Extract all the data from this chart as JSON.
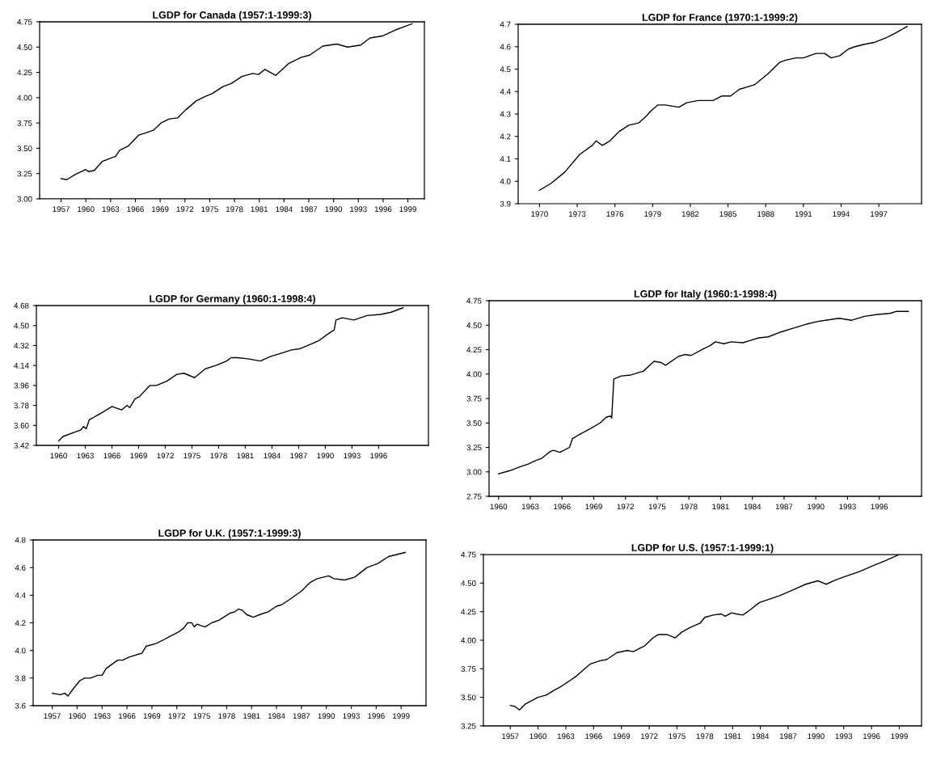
{
  "chart_data": [
    {
      "type": "line",
      "title": "LGDP for Canada (1957:1-1999:3)",
      "xlim": [
        1954.4,
        2001.0
      ],
      "xticks": [
        1957,
        1960,
        1963,
        1966,
        1969,
        1972,
        1975,
        1978,
        1981,
        1984,
        1987,
        1990,
        1993,
        1996,
        1999
      ],
      "ylim": [
        3.0,
        4.75
      ],
      "yticks": [
        {
          "value": 3.0,
          "label": "3.00"
        },
        {
          "value": 3.25,
          "label": "3.25"
        },
        {
          "value": 3.5,
          "label": "3.50"
        },
        {
          "value": 3.75,
          "label": "3.75"
        },
        {
          "value": 4.0,
          "label": "4.00"
        },
        {
          "value": 4.25,
          "label": "4.25"
        },
        {
          "value": 4.5,
          "label": "4.50"
        },
        {
          "value": 4.75,
          "label": "4.75"
        }
      ],
      "grid": false,
      "marker": "none",
      "line_style": "solid",
      "series": [
        {
          "color": "#000000",
          "x": [
            1957,
            1957.7,
            1958.7,
            1960.0,
            1960.3,
            1961.0,
            1962.0,
            1963.6,
            1964.1,
            1965.1,
            1966.4,
            1967.2,
            1968.2,
            1969.1,
            1970.1,
            1971.1,
            1972.1,
            1973.4,
            1974.4,
            1975.3,
            1976.6,
            1977.6,
            1978.9,
            1980.2,
            1980.9,
            1981.7,
            1983.0,
            1983.8,
            1984.6,
            1986.1,
            1987.1,
            1988.7,
            1990.4,
            1991.7,
            1993.3,
            1994.4,
            1995.9,
            1997.5,
            1999.5
          ],
          "values": [
            3.2,
            3.19,
            3.24,
            3.29,
            3.27,
            3.28,
            3.37,
            3.42,
            3.48,
            3.52,
            3.63,
            3.65,
            3.68,
            3.75,
            3.79,
            3.8,
            3.88,
            3.97,
            4.01,
            4.04,
            4.11,
            4.14,
            4.21,
            4.24,
            4.23,
            4.28,
            4.22,
            4.28,
            4.34,
            4.4,
            4.42,
            4.51,
            4.53,
            4.5,
            4.52,
            4.59,
            4.61,
            4.67,
            4.73
          ]
        }
      ]
    },
    {
      "type": "line",
      "title": "LGDP for France (1970:1-1999:2)",
      "xlim": [
        1968.3,
        2000.4
      ],
      "xticks": [
        1970,
        1973,
        1976,
        1979,
        1982,
        1985,
        1988,
        1991,
        1994,
        1997
      ],
      "ylim": [
        3.9,
        4.7
      ],
      "yticks": [
        3.9,
        {
          "value": 4.0,
          "label": "4.0"
        },
        4.1,
        4.2,
        4.3,
        4.4,
        4.5,
        4.6,
        4.7
      ],
      "grid": false,
      "marker": "none",
      "line_style": "solid",
      "series": [
        {
          "color": "#000000",
          "x": [
            1970,
            1970.9,
            1972.0,
            1973.2,
            1974.2,
            1974.5,
            1975.0,
            1975.6,
            1976.3,
            1977.1,
            1977.9,
            1978.5,
            1978.8,
            1979.4,
            1980.0,
            1981.1,
            1981.7,
            1982.6,
            1983.8,
            1984.5,
            1985.2,
            1985.9,
            1987.1,
            1988.2,
            1989.1,
            1989.6,
            1990.4,
            1991.0,
            1992.0,
            1992.7,
            1993.2,
            1993.9,
            1994.6,
            1995.1,
            1995.8,
            1996.7,
            1997.6,
            1998.3,
            1999.25
          ],
          "values": [
            3.96,
            3.99,
            4.04,
            4.12,
            4.16,
            4.18,
            4.16,
            4.18,
            4.22,
            4.25,
            4.26,
            4.29,
            4.31,
            4.34,
            4.34,
            4.33,
            4.35,
            4.36,
            4.36,
            4.38,
            4.38,
            4.41,
            4.43,
            4.48,
            4.53,
            4.54,
            4.55,
            4.55,
            4.57,
            4.57,
            4.55,
            4.56,
            4.59,
            4.6,
            4.61,
            4.62,
            4.64,
            4.66,
            4.69
          ]
        }
      ]
    },
    {
      "type": "line",
      "title": "LGDP for Germany (1960:1-1998:4)",
      "xlim": [
        1957.5,
        2001.6
      ],
      "xticks": [
        1960,
        1963,
        1966,
        1969,
        1972,
        1975,
        1978,
        1981,
        1984,
        1987,
        1990,
        1993,
        1996
      ],
      "ylim": [
        3.42,
        4.68
      ],
      "yticks": [
        {
          "value": 3.42,
          "label": "3.42"
        },
        {
          "value": 3.6,
          "label": "3.60"
        },
        {
          "value": 3.78,
          "label": "3.78"
        },
        {
          "value": 3.96,
          "label": "3.96"
        },
        {
          "value": 4.14,
          "label": "4.14"
        },
        {
          "value": 4.32,
          "label": "4.32"
        },
        {
          "value": 4.5,
          "label": "4.50"
        },
        {
          "value": 4.68,
          "label": "4.68"
        }
      ],
      "grid": false,
      "marker": "none",
      "line_style": "solid",
      "series": [
        {
          "color": "#000000",
          "x": [
            1960,
            1960.5,
            1961.5,
            1962.5,
            1962.8,
            1963.1,
            1963.45,
            1964.97,
            1966.0,
            1967.1,
            1967.7,
            1968.0,
            1968.6,
            1969.1,
            1969.8,
            1970.3,
            1971.0,
            1972.2,
            1973.3,
            1974.1,
            1975.3,
            1976.5,
            1977.7,
            1978.9,
            1979.4,
            1980.1,
            1981.3,
            1982.7,
            1983.8,
            1985.0,
            1986.2,
            1987.1,
            1987.7,
            1989.2,
            1990.4,
            1991.0,
            1991.2,
            1991.9,
            1993.2,
            1994.7,
            1996.2,
            1997.4,
            1998.75
          ],
          "values": [
            3.46,
            3.5,
            3.53,
            3.56,
            3.59,
            3.57,
            3.65,
            3.72,
            3.77,
            3.74,
            3.78,
            3.76,
            3.84,
            3.86,
            3.92,
            3.96,
            3.96,
            4.0,
            4.06,
            4.07,
            4.03,
            4.11,
            4.14,
            4.18,
            4.21,
            4.21,
            4.2,
            4.18,
            4.22,
            4.25,
            4.28,
            4.29,
            4.31,
            4.36,
            4.43,
            4.46,
            4.55,
            4.57,
            4.55,
            4.59,
            4.6,
            4.62,
            4.66
          ]
        }
      ]
    },
    {
      "type": "line",
      "title": "LGDP for Italy (1960:1-1998:4)",
      "xlim": [
        1959.1,
        2000.0
      ],
      "xticks": [
        1960,
        1963,
        1966,
        1969,
        1972,
        1975,
        1978,
        1981,
        1984,
        1987,
        1990,
        1993,
        1996
      ],
      "ylim": [
        2.75,
        4.75
      ],
      "yticks": [
        {
          "value": 2.75,
          "label": "2.75"
        },
        {
          "value": 3.0,
          "label": "3.00"
        },
        {
          "value": 3.25,
          "label": "3.25"
        },
        {
          "value": 3.5,
          "label": "3.50"
        },
        {
          "value": 3.75,
          "label": "3.75"
        },
        {
          "value": 4.0,
          "label": "4.00"
        },
        {
          "value": 4.25,
          "label": "4.25"
        },
        {
          "value": 4.5,
          "label": "4.50"
        },
        {
          "value": 4.75,
          "label": "4.75"
        }
      ],
      "grid": false,
      "marker": "none",
      "line_style": "solid",
      "series": [
        {
          "color": "#000000",
          "x": [
            1960,
            1961,
            1962,
            1962.8,
            1963.4,
            1964.1,
            1964.9,
            1965.2,
            1965.8,
            1966.7,
            1967.0,
            1967.6,
            1968.8,
            1969.6,
            1970.2,
            1970.6,
            1970.7,
            1970.9,
            1971.6,
            1972.5,
            1973.7,
            1974.0,
            1974.7,
            1975.3,
            1975.8,
            1977.0,
            1977.6,
            1978.2,
            1979.4,
            1980.0,
            1980.5,
            1981.3,
            1982.0,
            1983.1,
            1983.7,
            1984.6,
            1985.5,
            1986.7,
            1987.9,
            1989.1,
            1990.3,
            1992.2,
            1993.4,
            1994.6,
            1995.8,
            1997.0,
            1997.6,
            1998.75
          ],
          "values": [
            2.98,
            3.01,
            3.05,
            3.08,
            3.11,
            3.14,
            3.21,
            3.22,
            3.2,
            3.25,
            3.34,
            3.38,
            3.45,
            3.5,
            3.56,
            3.57,
            3.55,
            3.95,
            3.98,
            3.99,
            4.03,
            4.06,
            4.13,
            4.12,
            4.09,
            4.18,
            4.2,
            4.19,
            4.26,
            4.29,
            4.33,
            4.31,
            4.33,
            4.32,
            4.34,
            4.37,
            4.38,
            4.43,
            4.47,
            4.51,
            4.54,
            4.57,
            4.55,
            4.59,
            4.61,
            4.62,
            4.64,
            4.64
          ]
        }
      ]
    },
    {
      "type": "line",
      "title": "LGDP for U.K. (1957:1-1999:3)",
      "xlim": [
        1954.7,
        2002.0
      ],
      "xticks": [
        1957,
        1960,
        1963,
        1966,
        1969,
        1972,
        1975,
        1978,
        1981,
        1984,
        1987,
        1990,
        1993,
        1996,
        1999
      ],
      "ylim": [
        3.6,
        4.8
      ],
      "yticks": [
        3.6,
        3.8,
        {
          "value": 4.0,
          "label": "4.0"
        },
        4.2,
        4.4,
        4.6,
        4.8
      ],
      "grid": false,
      "marker": "none",
      "line_style": "solid",
      "series": [
        {
          "color": "#000000",
          "x": [
            1957,
            1958,
            1958.5,
            1958.9,
            1959.5,
            1960.3,
            1960.9,
            1961.6,
            1962.5,
            1963.0,
            1963.5,
            1964.9,
            1965.5,
            1966.2,
            1967.2,
            1967.8,
            1968.3,
            1969.5,
            1970.5,
            1971.1,
            1972.1,
            1972.8,
            1973.3,
            1973.8,
            1974.1,
            1974.4,
            1975.4,
            1976.2,
            1977.1,
            1978.4,
            1979.0,
            1979.4,
            1979.9,
            1980.4,
            1981.2,
            1982.0,
            1983.0,
            1984.0,
            1984.6,
            1985.6,
            1987.0,
            1988.0,
            1988.9,
            1990.3,
            1990.9,
            1992.2,
            1993.4,
            1994.9,
            1996.2,
            1997.5,
            1999.5
          ],
          "values": [
            3.69,
            3.68,
            3.69,
            3.67,
            3.72,
            3.78,
            3.8,
            3.8,
            3.82,
            3.82,
            3.87,
            3.93,
            3.93,
            3.95,
            3.97,
            3.98,
            4.03,
            4.05,
            4.08,
            4.1,
            4.13,
            4.16,
            4.2,
            4.2,
            4.17,
            4.19,
            4.17,
            4.2,
            4.22,
            4.27,
            4.28,
            4.3,
            4.29,
            4.26,
            4.24,
            4.26,
            4.28,
            4.32,
            4.33,
            4.37,
            4.43,
            4.49,
            4.52,
            4.54,
            4.52,
            4.51,
            4.53,
            4.6,
            4.63,
            4.68,
            4.71
          ]
        }
      ]
    },
    {
      "type": "line",
      "title": "LGDP for U.S. (1957:1-1999:1)",
      "xlim": [
        1954.1,
        2001.4
      ],
      "xticks": [
        1957,
        1960,
        1963,
        1966,
        1969,
        1972,
        1975,
        1978,
        1981,
        1984,
        1987,
        1990,
        1993,
        1996,
        1999
      ],
      "ylim": [
        3.25,
        4.75
      ],
      "yticks": [
        {
          "value": 3.25,
          "label": "3.25"
        },
        {
          "value": 3.5,
          "label": "3.50"
        },
        {
          "value": 3.75,
          "label": "3.75"
        },
        {
          "value": 4.0,
          "label": "4.00"
        },
        {
          "value": 4.25,
          "label": "4.25"
        },
        {
          "value": 4.5,
          "label": "4.50"
        },
        {
          "value": 4.75,
          "label": "4.75"
        }
      ],
      "grid": false,
      "marker": "none",
      "line_style": "solid",
      "series": [
        {
          "color": "#000000",
          "x": [
            1957,
            1957.5,
            1958.0,
            1958.6,
            1959.3,
            1960.0,
            1960.9,
            1961.7,
            1962.4,
            1963.5,
            1964.2,
            1964.9,
            1965.6,
            1966.7,
            1967.4,
            1968.5,
            1969.6,
            1970.3,
            1971.0,
            1971.5,
            1972.4,
            1973.0,
            1973.9,
            1974.8,
            1975.5,
            1976.4,
            1977.5,
            1978.0,
            1978.9,
            1979.8,
            1980.2,
            1980.9,
            1981.4,
            1982.1,
            1982.8,
            1983.9,
            1985.0,
            1986.1,
            1987.5,
            1988.9,
            1990.2,
            1991.1,
            1992.2,
            1993.6,
            1994.7,
            1996.1,
            1997.6,
            1999.0
          ],
          "values": [
            3.43,
            3.42,
            3.39,
            3.44,
            3.47,
            3.5,
            3.52,
            3.56,
            3.59,
            3.65,
            3.69,
            3.74,
            3.79,
            3.82,
            3.83,
            3.89,
            3.91,
            3.9,
            3.93,
            3.95,
            4.02,
            4.05,
            4.05,
            4.02,
            4.07,
            4.11,
            4.15,
            4.2,
            4.22,
            4.23,
            4.21,
            4.24,
            4.23,
            4.22,
            4.26,
            4.33,
            4.36,
            4.39,
            4.44,
            4.49,
            4.52,
            4.49,
            4.53,
            4.57,
            4.6,
            4.65,
            4.7,
            4.75
          ]
        }
      ]
    }
  ]
}
